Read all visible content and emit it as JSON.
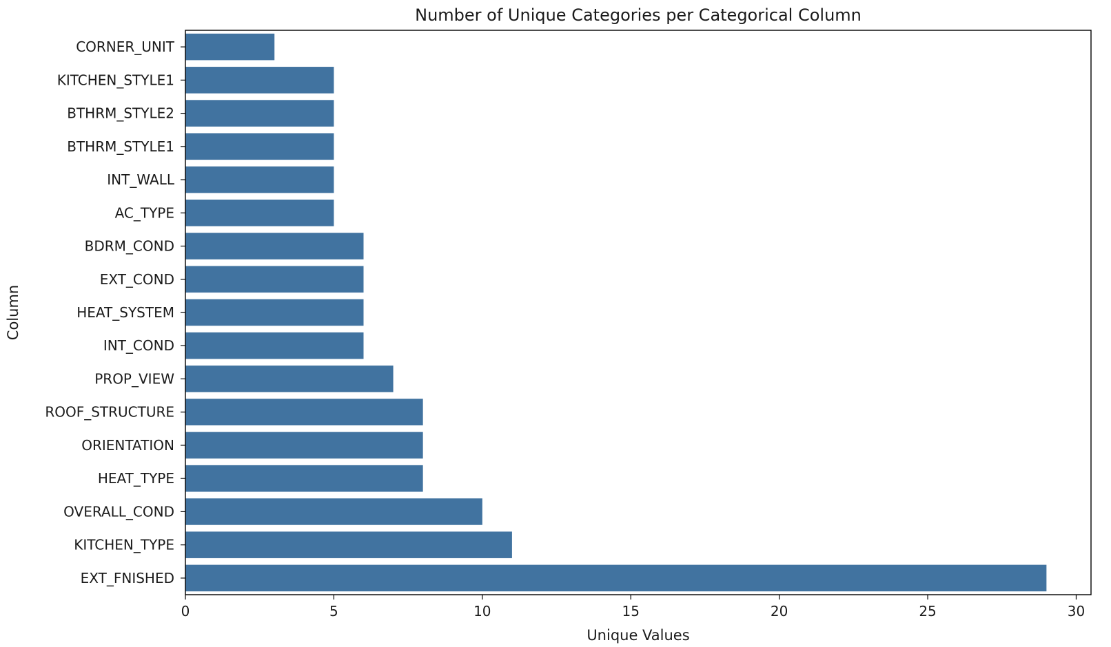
{
  "chart_data": {
    "type": "bar",
    "orientation": "horizontal",
    "title": "Number of Unique Categories per Categorical Column",
    "xlabel": "Unique Values",
    "ylabel": "Column",
    "categories": [
      "CORNER_UNIT",
      "KITCHEN_STYLE1",
      "BTHRM_STYLE2",
      "BTHRM_STYLE1",
      "INT_WALL",
      "AC_TYPE",
      "BDRM_COND",
      "EXT_COND",
      "HEAT_SYSTEM",
      "INT_COND",
      "PROP_VIEW",
      "ROOF_STRUCTURE",
      "ORIENTATION",
      "HEAT_TYPE",
      "OVERALL_COND",
      "KITCHEN_TYPE",
      "EXT_FNISHED"
    ],
    "values": [
      3,
      5,
      5,
      5,
      5,
      5,
      6,
      6,
      6,
      6,
      7,
      8,
      8,
      8,
      10,
      11,
      29
    ],
    "xlim": [
      0,
      30.5
    ],
    "xticks": [
      0,
      5,
      10,
      15,
      20,
      25,
      30
    ],
    "grid": false,
    "bar_color": "#4173a0"
  }
}
